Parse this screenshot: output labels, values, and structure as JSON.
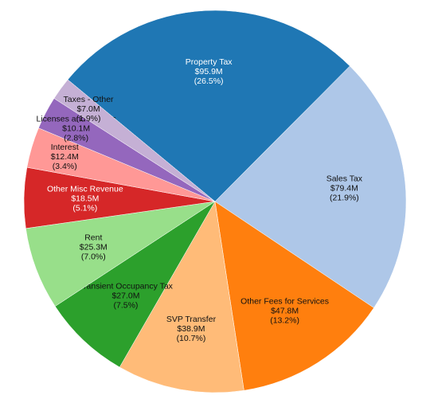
{
  "chart_data": {
    "type": "pie",
    "categories": [
      "Property Tax",
      "Sales Tax",
      "Other Fees for Services",
      "SVP Transfer",
      "Transient Occupancy Tax",
      "Rent",
      "Other Misc Revenue",
      "Interest",
      "Licenses and Permits",
      "Taxes - Other"
    ],
    "values": [
      95.9,
      79.4,
      47.8,
      38.9,
      27.0,
      25.3,
      18.5,
      12.4,
      10.1,
      7.0
    ],
    "value_labels": [
      "$95.9M",
      "$79.4M",
      "$47.8M",
      "$38.9M",
      "$27.0M",
      "$25.3M",
      "$18.5M",
      "$12.4M",
      "$10.1M",
      "$7.0M"
    ],
    "percents": [
      26.5,
      21.9,
      13.2,
      10.7,
      7.5,
      7.0,
      5.1,
      3.4,
      2.8,
      1.9
    ],
    "percent_labels": [
      "(26.5%)",
      "(21.9%)",
      "(13.2%)",
      "(10.7%)",
      "(7.5%)",
      "(7.0%)",
      "(5.1%)",
      "(3.4%)",
      "(2.8%)",
      "(1.9%)"
    ],
    "colors": [
      "#1f77b4",
      "#aec7e8",
      "#ff7f0e",
      "#ffbb78",
      "#2ca02c",
      "#98df8a",
      "#d62728",
      "#ff9896",
      "#9467bd",
      "#c5b0d5"
    ]
  }
}
